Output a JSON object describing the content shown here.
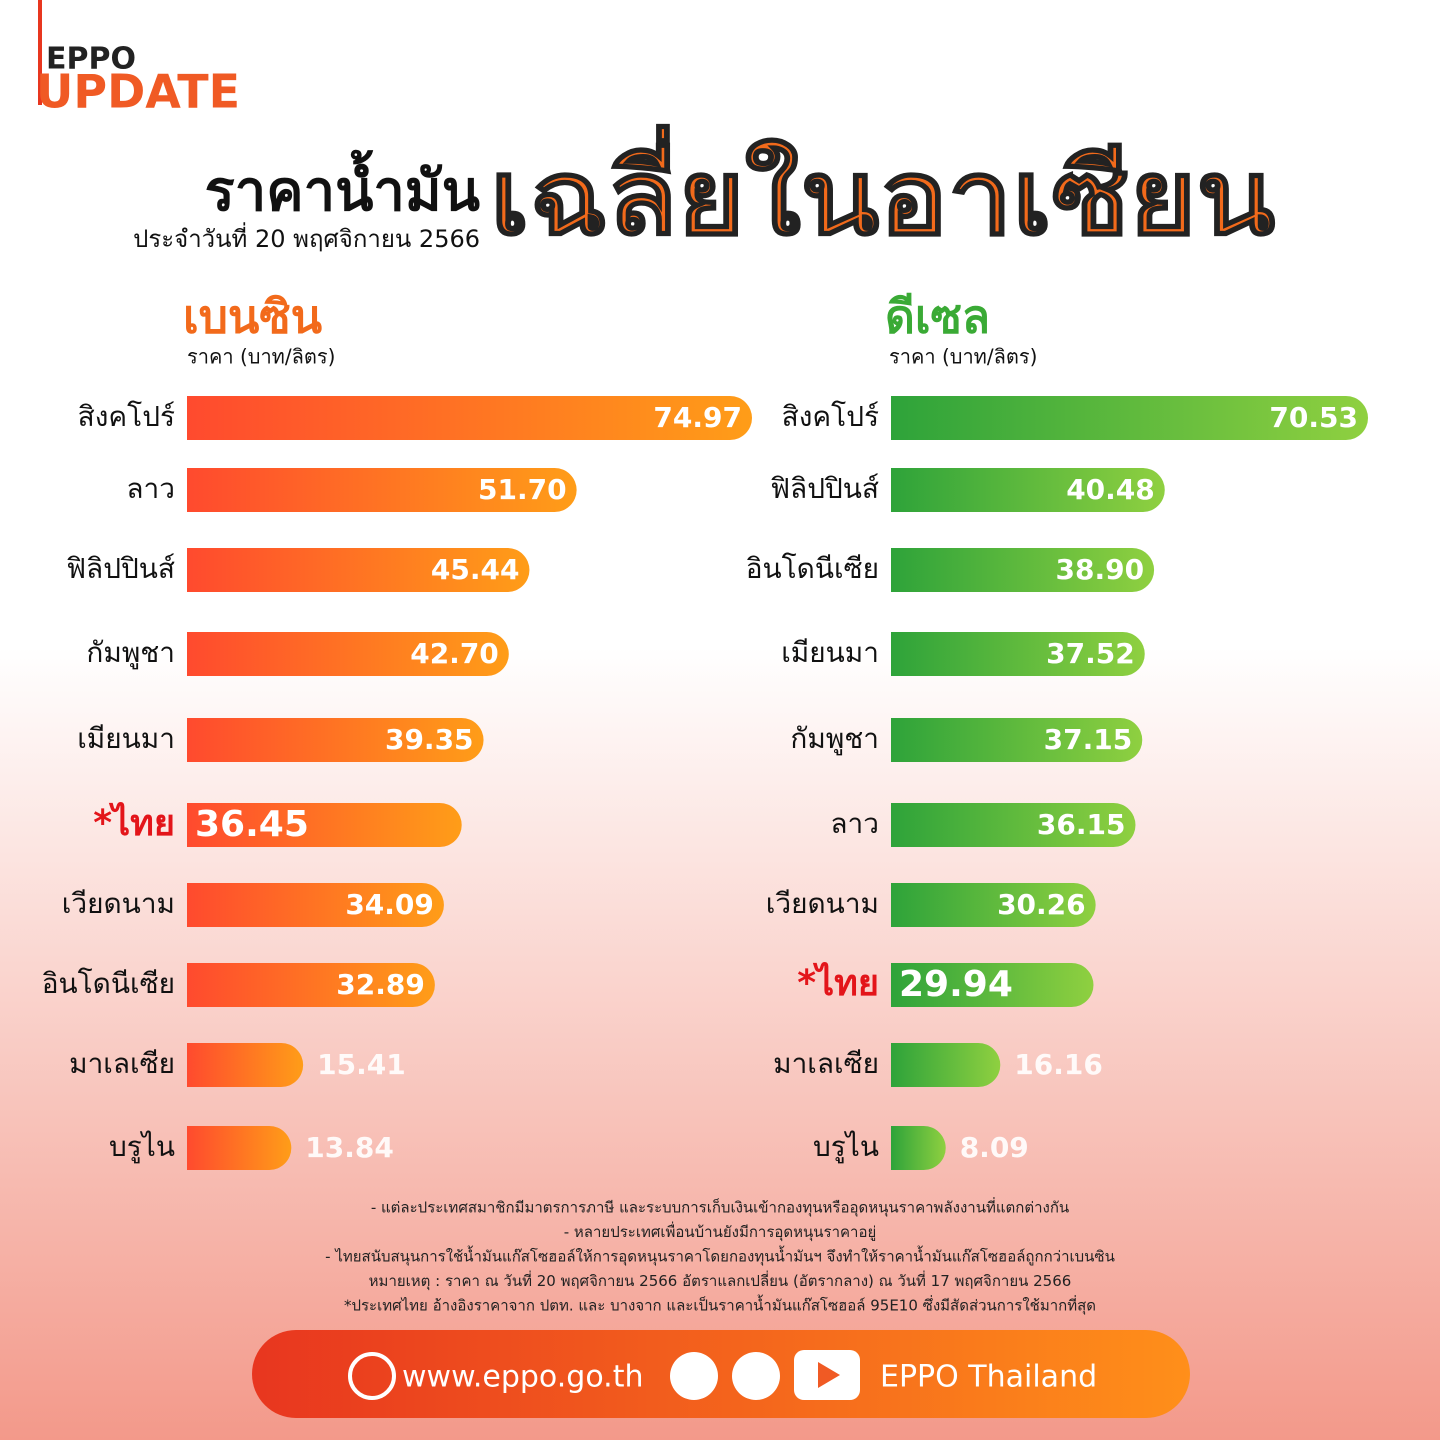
{
  "header": {
    "brand": "EPPO",
    "update": "UPDATE",
    "title_main": "ราคาน้ำมัน",
    "title_accent": "เฉลี่ยในอาเซียน",
    "subtitle": "ประจำวันที่ 20 พฤศจิกายน 2566"
  },
  "chart_data": [
    {
      "type": "bar",
      "orientation": "horizontal",
      "title": "เบนซิน",
      "unit_label": "ราคา (บาท/ลิตร)",
      "title_color": "#f26a1b",
      "colors": [
        "#ff4a2e",
        "#ff9d18"
      ],
      "categories": [
        "สิงคโปร์",
        "ลาว",
        "ฟิลิปปินส์",
        "กัมพูชา",
        "เมียนมา",
        "*ไทย",
        "เวียดนาม",
        "อินโดนีเซีย",
        "มาเลเซีย",
        "บรูไน"
      ],
      "values": [
        74.97,
        51.7,
        45.44,
        42.7,
        39.35,
        36.45,
        34.09,
        32.89,
        15.41,
        13.84
      ],
      "value_labels": [
        "74.97",
        "51.70",
        "45.44",
        "42.70",
        "39.35",
        "36.45",
        "34.09",
        "32.89",
        "15.41",
        "13.84"
      ]
    },
    {
      "type": "bar",
      "orientation": "horizontal",
      "title": "ดีเซล",
      "unit_label": "ราคา (บาท/ลิตร)",
      "title_color": "#3aaa35",
      "colors": [
        "#2ea33a",
        "#8fd040"
      ],
      "categories": [
        "สิงคโปร์",
        "ฟิลิปปินส์",
        "อินโดนีเซีย",
        "เมียนมา",
        "กัมพูชา",
        "ลาว",
        "เวียดนาม",
        "*ไทย",
        "มาเลเซีย",
        "บรูไน"
      ],
      "values": [
        70.53,
        40.48,
        38.9,
        37.52,
        37.15,
        36.15,
        30.26,
        29.94,
        16.16,
        8.09
      ],
      "value_labels": [
        "70.53",
        "40.48",
        "38.90",
        "37.52",
        "37.15",
        "36.15",
        "30.26",
        "29.94",
        "16.16",
        "8.09"
      ]
    }
  ],
  "notes": [
    "- แต่ละประเทศสมาชิกมีมาตรการภาษี และระบบการเก็บเงินเข้ากองทุนหรืออุดหนุนราคาพลังงานที่แตกต่างกัน",
    "- หลายประเทศเพื่อนบ้านยังมีการอุดหนุนราคาอยู่",
    "- ไทยสนับสนุนการใช้น้ำมันแก๊สโซฮอล์ให้การอุดหนุนราคาโดยกองทุนน้ำมันฯ จึงทำให้ราคาน้ำมันแก๊สโซฮอล์ถูกกว่าเบนซิน",
    "หมายเหตุ : ราคา ณ วันที่ 20 พฤศจิกายน 2566 อัตราแลกเปลี่ยน (อัตรากลาง) ณ วันที่ 17 พฤศจิกายน 2566",
    "*ประเทศไทย อ้างอิงราคาจาก ปตท. และ บางจาก และเป็นราคาน้ำมันแก๊สโซฮอล์ 95E10 ซึ่งมีสัดส่วนการใช้มากที่สุด"
  ],
  "footer": {
    "website": "www.eppo.go.th",
    "social": "EPPO Thailand"
  }
}
